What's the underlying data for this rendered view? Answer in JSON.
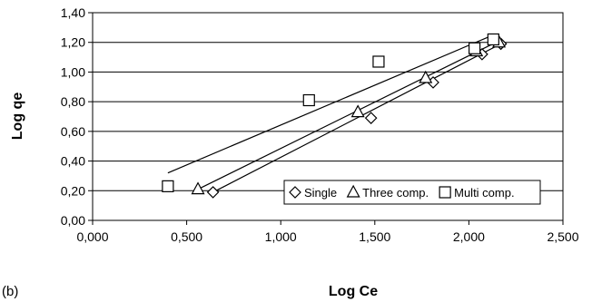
{
  "panel_label": "(b)",
  "chart_data": {
    "type": "scatter",
    "xlabel": "Log Ce",
    "ylabel": "Log qe",
    "xlim": [
      0,
      2.5
    ],
    "ylim": [
      0,
      1.4
    ],
    "x_ticks": [
      "0,000",
      "0,500",
      "1,000",
      "1,500",
      "2,000",
      "2,500"
    ],
    "y_ticks": [
      "0,00",
      "0,20",
      "0,40",
      "0,60",
      "0,80",
      "1,00",
      "1,20",
      "1,40"
    ],
    "grid": "horizontal",
    "legend_position": "bottom-right",
    "series": [
      {
        "name": "Single",
        "marker": "diamond",
        "points": [
          [
            0.64,
            0.19
          ],
          [
            1.48,
            0.69
          ],
          [
            1.81,
            0.93
          ],
          [
            2.07,
            1.12
          ],
          [
            2.17,
            1.19
          ]
        ],
        "fit": [
          [
            0.64,
            0.19
          ],
          [
            2.17,
            1.19
          ]
        ]
      },
      {
        "name": "Three comp.",
        "marker": "triangle",
        "points": [
          [
            0.56,
            0.21
          ],
          [
            1.41,
            0.73
          ],
          [
            1.77,
            0.96
          ],
          [
            2.04,
            1.14
          ],
          [
            2.16,
            1.2
          ]
        ],
        "fit": [
          [
            0.56,
            0.21
          ],
          [
            2.16,
            1.21
          ]
        ]
      },
      {
        "name": "Multi comp.",
        "marker": "square",
        "points": [
          [
            0.4,
            0.23
          ],
          [
            1.15,
            0.81
          ],
          [
            1.52,
            1.07
          ],
          [
            2.03,
            1.16
          ],
          [
            2.13,
            1.22
          ]
        ],
        "fit": [
          [
            0.4,
            0.32
          ],
          [
            2.13,
            1.25
          ]
        ]
      }
    ]
  }
}
